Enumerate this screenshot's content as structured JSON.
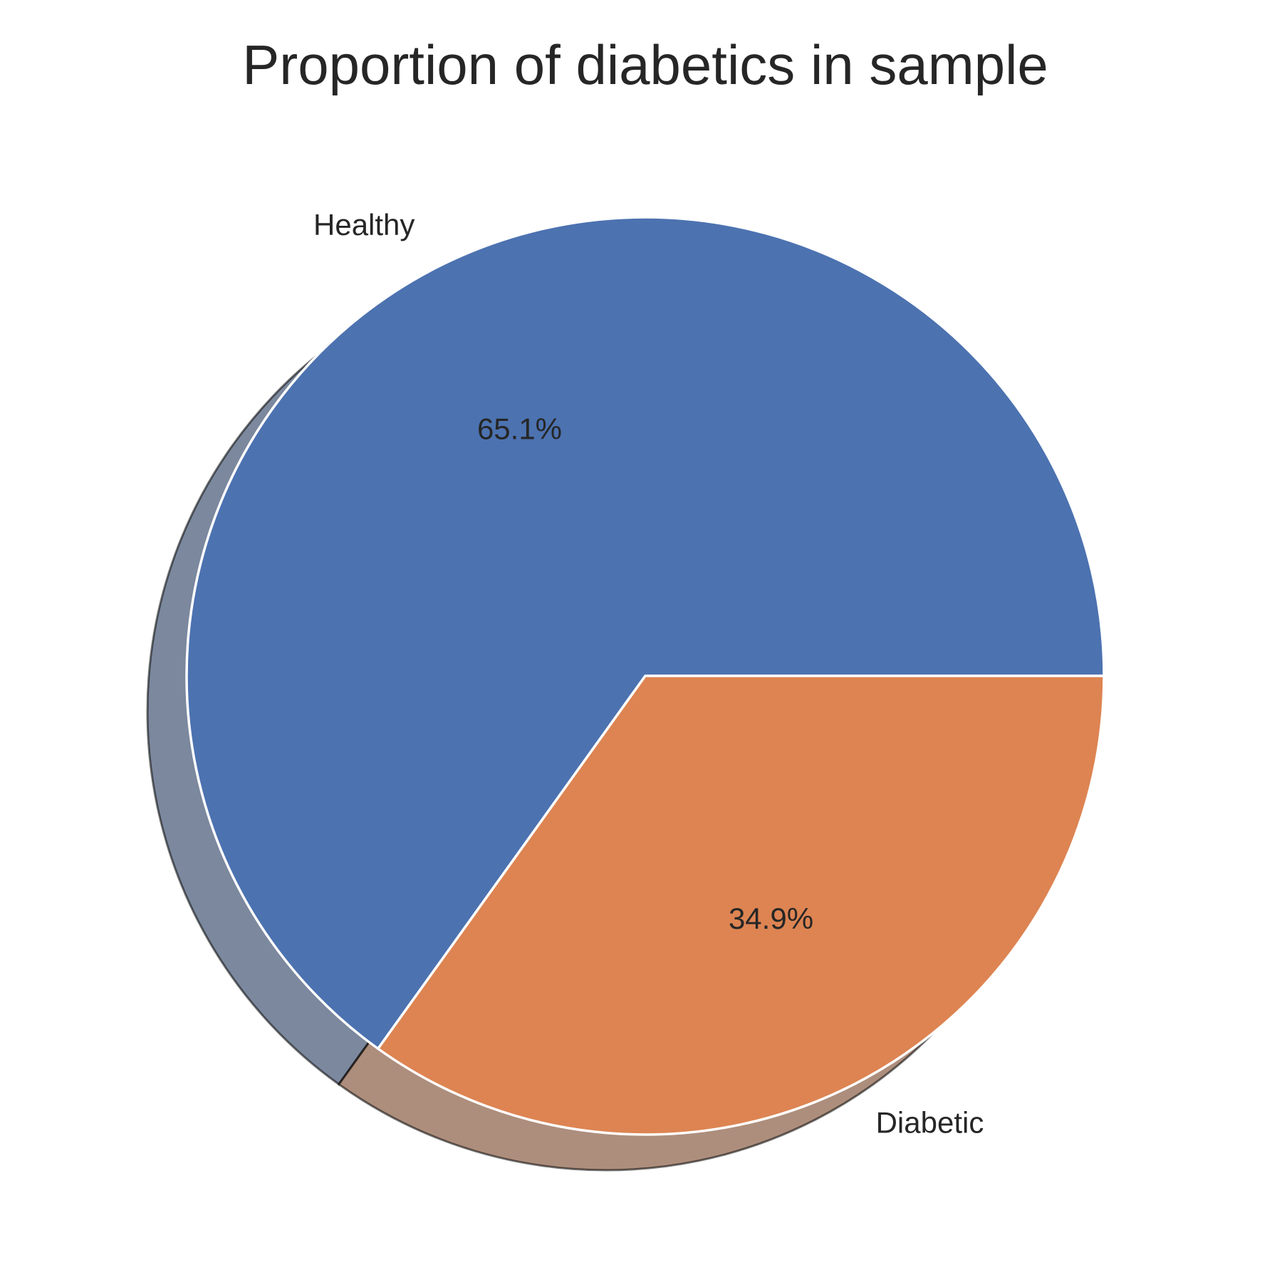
{
  "chart_data": {
    "type": "pie",
    "title": "Proportion of diabetics in sample",
    "categories": [
      "Healthy",
      "Diabetic"
    ],
    "values": [
      65.1,
      34.9
    ],
    "value_labels": [
      "65.1%",
      "34.9%"
    ],
    "colors": [
      "#4c72b0",
      "#dd8452"
    ],
    "shadow": true,
    "start_angle_deg": 0,
    "direction": "counterclockwise",
    "wedge_edge_color": "#ffffff"
  }
}
